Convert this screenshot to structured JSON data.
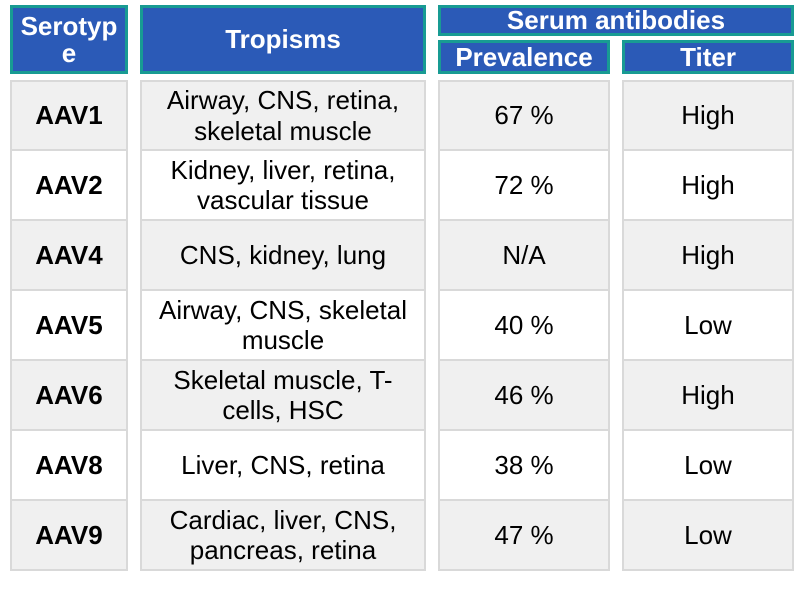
{
  "table": {
    "columns": {
      "serotype": "Serotype",
      "tropisms": "Tropisms",
      "serum_antibodies": "Serum antibodies",
      "prevalence": "Prevalence",
      "titer": "Titer"
    },
    "rows": [
      {
        "serotype": "AAV1",
        "tropisms": "Airway, CNS, retina, skeletal muscle",
        "prevalence": "67 %",
        "titer": "High"
      },
      {
        "serotype": "AAV2",
        "tropisms": "Kidney, liver, retina, vascular tissue",
        "prevalence": "72 %",
        "titer": "High"
      },
      {
        "serotype": "AAV4",
        "tropisms": "CNS, kidney, lung",
        "prevalence": "N/A",
        "titer": "High"
      },
      {
        "serotype": "AAV5",
        "tropisms": "Airway, CNS, skeletal muscle",
        "prevalence": "40 %",
        "titer": "Low"
      },
      {
        "serotype": "AAV6",
        "tropisms": "Skeletal muscle, T-cells, HSC",
        "prevalence": "46 %",
        "titer": "High"
      },
      {
        "serotype": "AAV8",
        "tropisms": "Liver, CNS, retina",
        "prevalence": "38 %",
        "titer": "Low"
      },
      {
        "serotype": "AAV9",
        "tropisms": "Cardiac, liver, CNS, pancreas, retina",
        "prevalence": "47 %",
        "titer": "Low"
      }
    ],
    "colors": {
      "header_fill": "#2B5AB7",
      "header_border": "#189B93",
      "header_text": "#FFFFFF",
      "row_alt_fill": "#F0F0F0",
      "row_fill": "#FFFFFF",
      "cell_border": "#D9D9D9",
      "body_text": "#000000"
    }
  }
}
